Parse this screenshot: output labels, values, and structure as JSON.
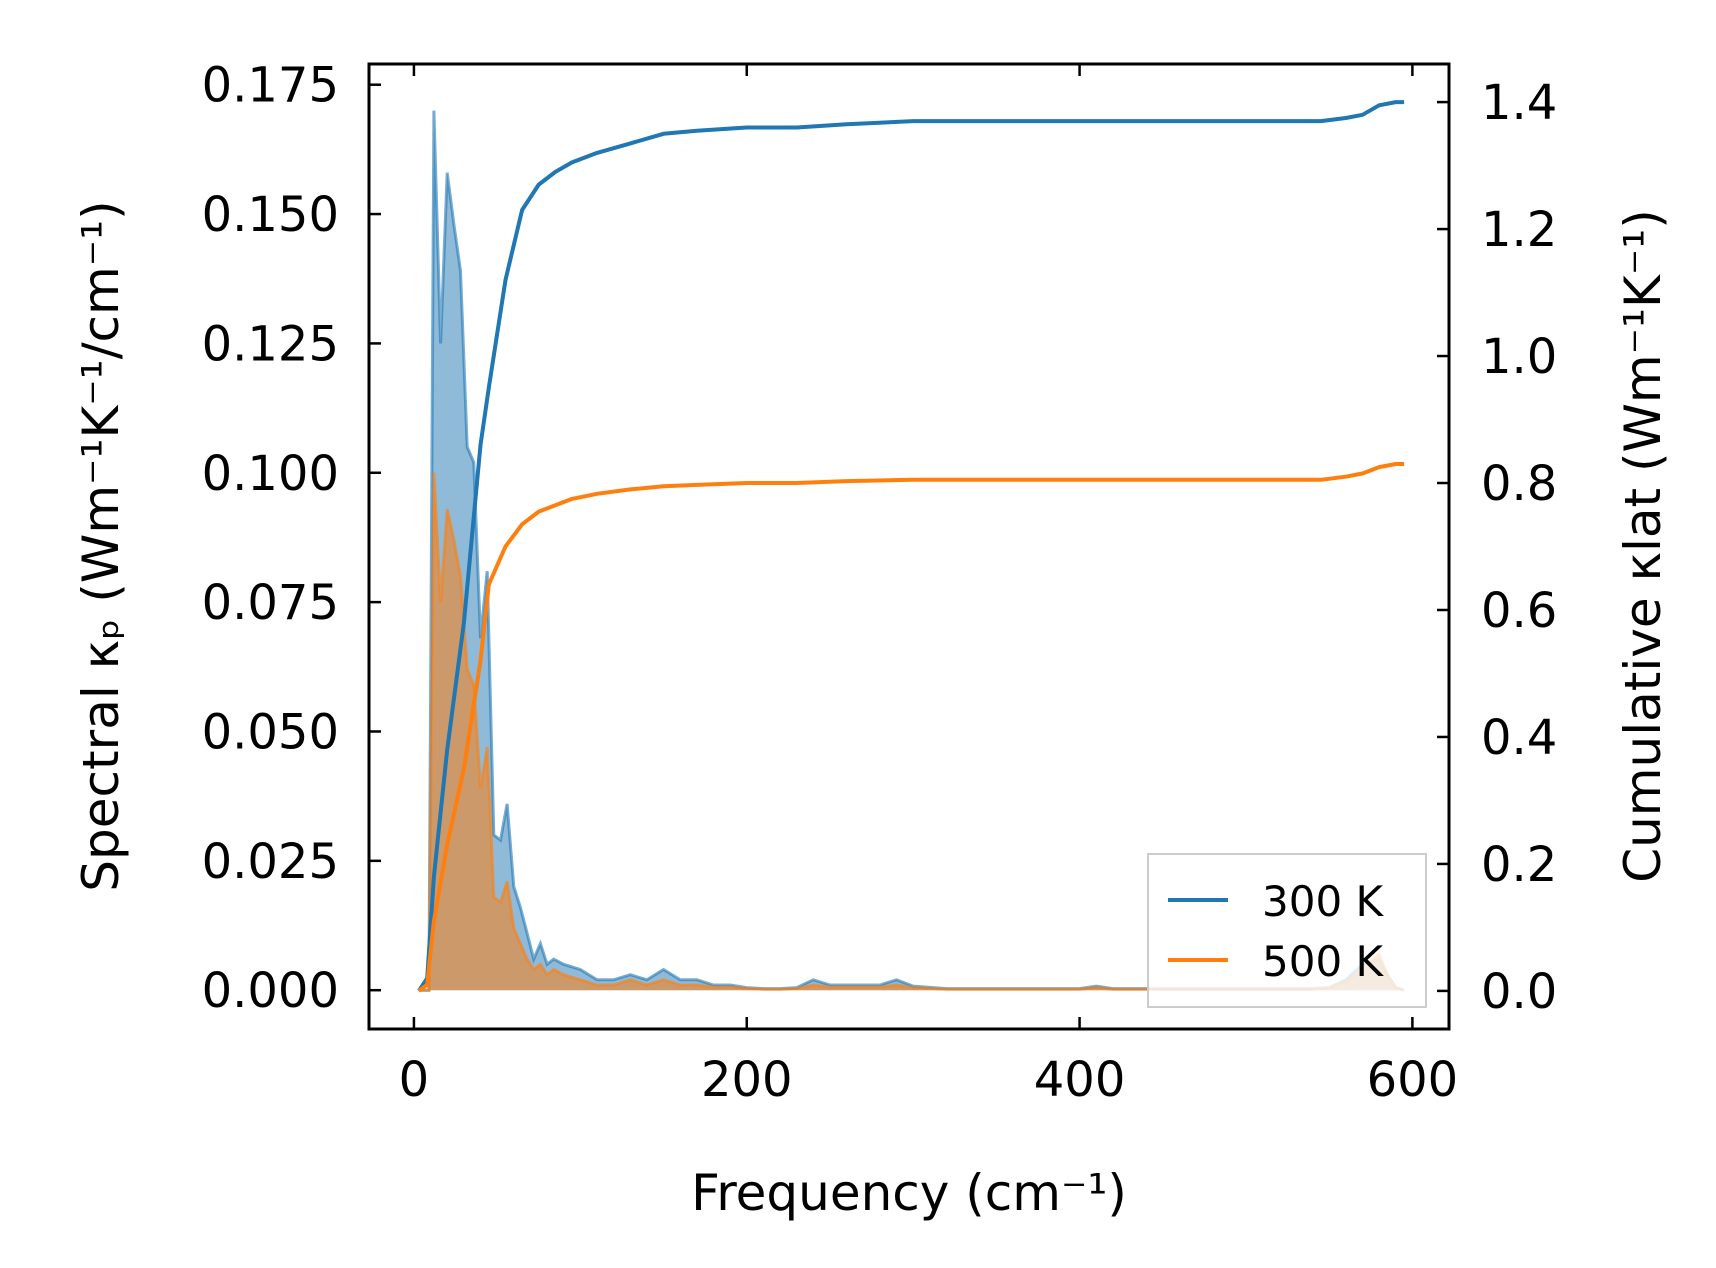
{
  "chart_data": {
    "type": "line",
    "title": "",
    "xlabel": "Frequency (cm⁻¹)",
    "ylabel_left": "Spectral κₚ (Wm⁻¹K⁻¹/cm⁻¹)",
    "ylabel_right": "Cumulative κlat (Wm⁻¹K⁻¹)",
    "xlim": [
      -27,
      622
    ],
    "ylim_left": [
      -0.0075,
      0.179
    ],
    "ylim_right": [
      -0.06,
      1.46
    ],
    "xticks": [
      "0",
      "200",
      "400",
      "600"
    ],
    "xtick_values": [
      0,
      200,
      400,
      600
    ],
    "yticks_left": [
      "0.000",
      "0.025",
      "0.050",
      "0.075",
      "0.100",
      "0.125",
      "0.150",
      "0.175"
    ],
    "ytick_values_left": [
      0,
      0.025,
      0.05,
      0.075,
      0.1,
      0.125,
      0.15,
      0.175
    ],
    "yticks_right": [
      "0.0",
      "0.2",
      "0.4",
      "0.6",
      "0.8",
      "1.0",
      "1.2",
      "1.4"
    ],
    "ytick_values_right": [
      0,
      0.2,
      0.4,
      0.6,
      0.8,
      1.0,
      1.2,
      1.4
    ],
    "legend_position": "lower-right",
    "series": [
      {
        "name": "300 K",
        "color": "#1f77b4",
        "spectral": {
          "x": [
            3,
            6,
            9,
            12,
            16,
            20,
            24,
            28,
            32,
            36,
            40,
            44,
            48,
            52,
            56,
            60,
            64,
            68,
            72,
            76,
            80,
            84,
            90,
            100,
            110,
            120,
            130,
            140,
            150,
            160,
            170,
            180,
            190,
            200,
            210,
            220,
            230,
            240,
            250,
            260,
            270,
            280,
            290,
            300,
            320,
            340,
            360,
            380,
            400,
            410,
            420,
            440,
            460,
            480,
            500,
            520,
            540,
            550,
            560,
            570,
            580,
            585,
            590,
            595
          ],
          "y": [
            0,
            0,
            0,
            0.17,
            0.125,
            0.158,
            0.148,
            0.139,
            0.105,
            0.102,
            0.068,
            0.081,
            0.03,
            0.029,
            0.036,
            0.02,
            0.016,
            0.011,
            0.006,
            0.009,
            0.005,
            0.006,
            0.005,
            0.004,
            0.002,
            0.002,
            0.003,
            0.002,
            0.004,
            0.002,
            0.002,
            0.001,
            0.001,
            0.0005,
            0.0003,
            0.0003,
            0.0005,
            0.002,
            0.001,
            0.001,
            0.001,
            0.001,
            0.002,
            0.0008,
            0.0003,
            0.0003,
            0.0003,
            0.0003,
            0.0003,
            0.0008,
            0.0003,
            0.0003,
            0.0003,
            0.0003,
            0.0003,
            0.0003,
            0.0003,
            0.0005,
            0.002,
            0.005,
            0.006,
            0.003,
            0.0005,
            0
          ]
        },
        "cumulative": {
          "x": [
            3,
            8,
            12,
            20,
            30,
            40,
            45,
            55,
            65,
            75,
            85,
            95,
            110,
            130,
            150,
            170,
            200,
            230,
            260,
            300,
            350,
            400,
            450,
            500,
            545,
            560,
            570,
            580,
            590,
            595
          ],
          "y": [
            0,
            0.02,
            0.18,
            0.38,
            0.58,
            0.86,
            0.95,
            1.12,
            1.23,
            1.27,
            1.29,
            1.305,
            1.32,
            1.335,
            1.35,
            1.355,
            1.36,
            1.36,
            1.365,
            1.37,
            1.37,
            1.37,
            1.37,
            1.37,
            1.37,
            1.375,
            1.38,
            1.395,
            1.4,
            1.4
          ]
        }
      },
      {
        "name": "500 K",
        "color": "#ff7f0e",
        "spectral": {
          "x": [
            3,
            6,
            9,
            12,
            16,
            20,
            24,
            28,
            32,
            36,
            40,
            44,
            48,
            52,
            56,
            60,
            64,
            68,
            72,
            76,
            80,
            84,
            90,
            100,
            110,
            120,
            130,
            140,
            150,
            160,
            170,
            180,
            190,
            200,
            210,
            220,
            230,
            240,
            250,
            260,
            270,
            280,
            290,
            300,
            320,
            340,
            360,
            380,
            400,
            410,
            420,
            440,
            460,
            480,
            500,
            520,
            540,
            550,
            560,
            570,
            580,
            585,
            590,
            595
          ],
          "y": [
            0,
            0,
            0,
            0.1,
            0.075,
            0.093,
            0.087,
            0.08,
            0.062,
            0.059,
            0.039,
            0.047,
            0.018,
            0.017,
            0.021,
            0.012,
            0.009,
            0.006,
            0.004,
            0.005,
            0.003,
            0.004,
            0.003,
            0.002,
            0.001,
            0.001,
            0.002,
            0.001,
            0.002,
            0.001,
            0.001,
            0.0006,
            0.0006,
            0.0003,
            0.0002,
            0.0002,
            0.0003,
            0.001,
            0.0006,
            0.0006,
            0.0006,
            0.0006,
            0.001,
            0.0005,
            0.0002,
            0.0002,
            0.0002,
            0.0002,
            0.0002,
            0.0005,
            0.0002,
            0.0002,
            0.0002,
            0.0002,
            0.0002,
            0.0002,
            0.0002,
            0.0004,
            0.0015,
            0.004,
            0.007,
            0.003,
            0.0004,
            0
          ]
        },
        "cumulative": {
          "x": [
            3,
            8,
            12,
            20,
            30,
            40,
            45,
            55,
            65,
            75,
            85,
            95,
            110,
            130,
            150,
            170,
            200,
            230,
            260,
            300,
            350,
            400,
            450,
            500,
            545,
            560,
            570,
            580,
            590,
            595
          ],
          "y": [
            0,
            0.01,
            0.11,
            0.23,
            0.35,
            0.52,
            0.64,
            0.7,
            0.735,
            0.755,
            0.765,
            0.775,
            0.783,
            0.79,
            0.795,
            0.797,
            0.8,
            0.8,
            0.803,
            0.805,
            0.805,
            0.805,
            0.805,
            0.805,
            0.805,
            0.81,
            0.815,
            0.825,
            0.83,
            0.83
          ]
        }
      }
    ]
  }
}
